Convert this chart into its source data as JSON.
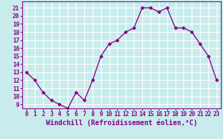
{
  "x": [
    0,
    1,
    2,
    3,
    4,
    5,
    6,
    7,
    8,
    9,
    10,
    11,
    12,
    13,
    14,
    15,
    16,
    17,
    18,
    19,
    20,
    21,
    22,
    23
  ],
  "y": [
    13,
    12,
    10.5,
    9.5,
    9,
    8.5,
    10.5,
    9.5,
    12,
    15,
    16.5,
    17,
    18,
    18.5,
    21,
    21,
    20.5,
    21,
    18.5,
    18.5,
    18,
    16.5,
    15,
    12
  ],
  "line_color": "#880088",
  "marker": "D",
  "marker_size": 2.5,
  "bg_color": "#c8ecec",
  "grid_color": "#ffffff",
  "xlabel": "Windchill (Refroidissement éolien,°C)",
  "xlabel_fontsize": 7,
  "xtick_labels": [
    "0",
    "1",
    "2",
    "3",
    "4",
    "5",
    "6",
    "7",
    "8",
    "9",
    "10",
    "11",
    "12",
    "13",
    "14",
    "15",
    "16",
    "17",
    "18",
    "19",
    "20",
    "21",
    "22",
    "23"
  ],
  "ytick_labels": [
    "9",
    "10",
    "11",
    "12",
    "13",
    "14",
    "15",
    "16",
    "17",
    "18",
    "19",
    "20",
    "21"
  ],
  "ylim": [
    8.5,
    21.8
  ],
  "xlim": [
    -0.5,
    23.5
  ],
  "tick_fontsize": 6,
  "line_width": 1.0
}
